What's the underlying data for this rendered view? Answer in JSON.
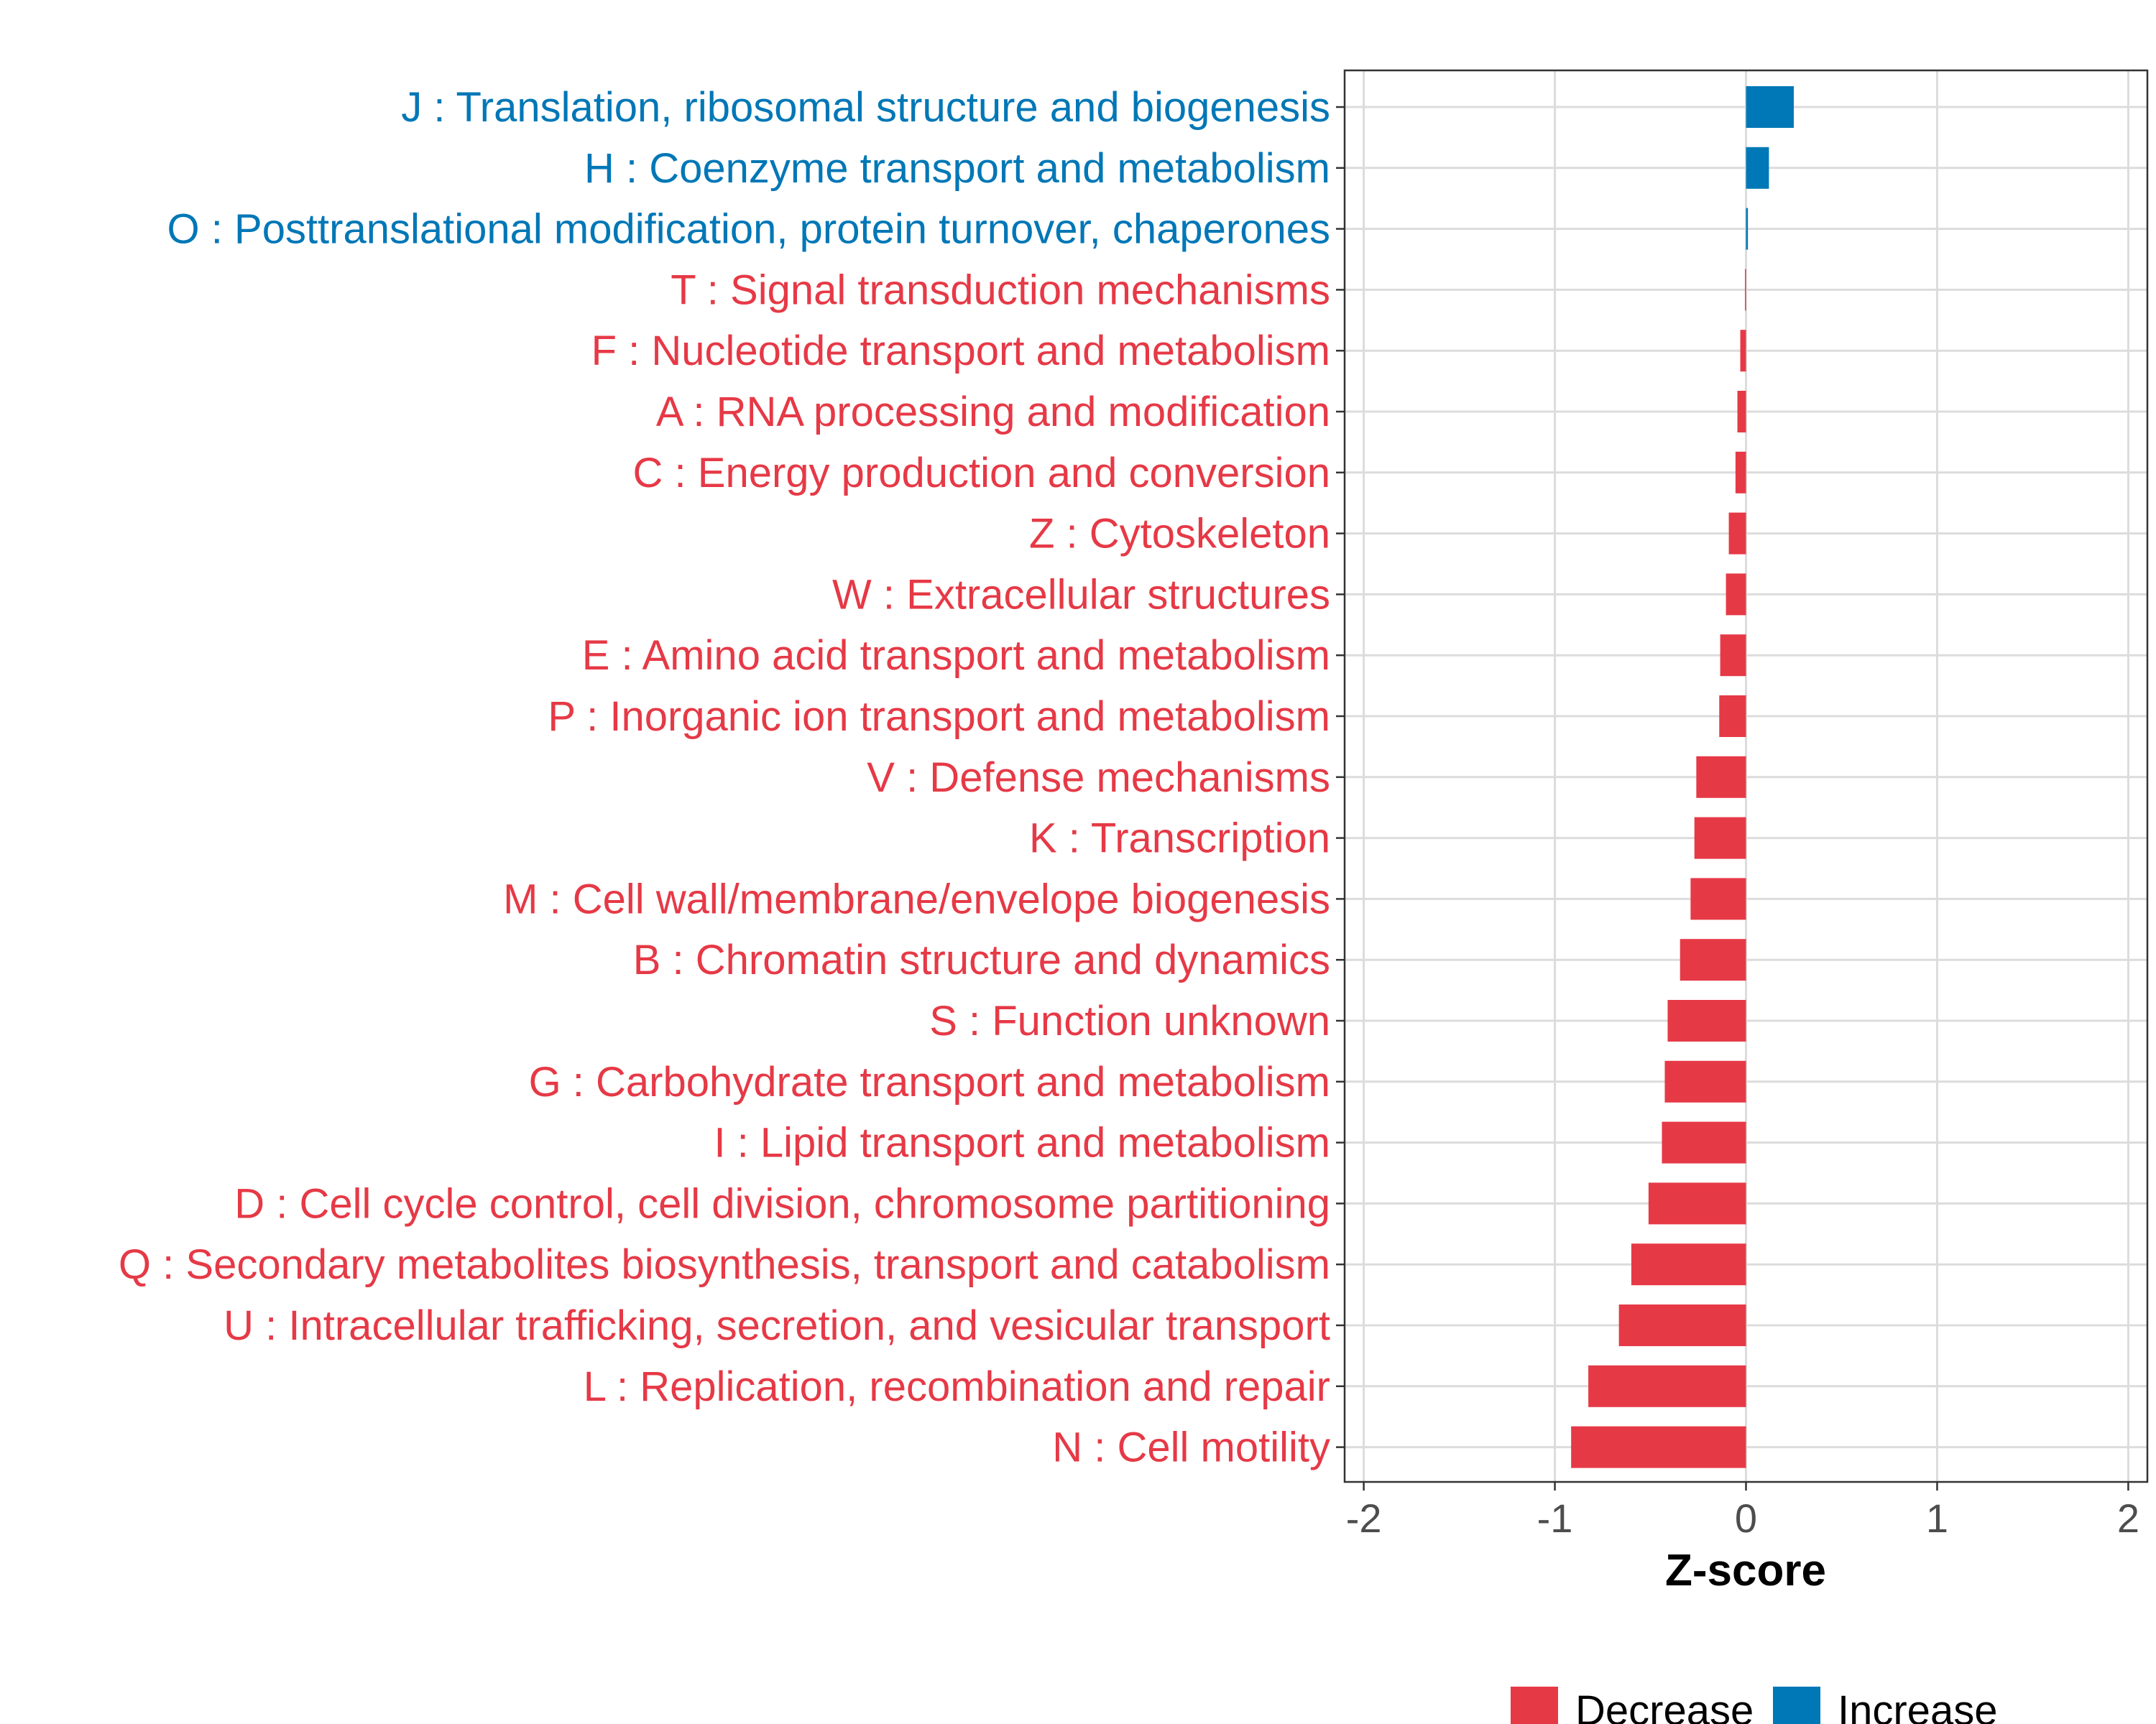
{
  "chart_data": {
    "type": "bar",
    "orientation": "horizontal",
    "xlabel": "Z-score",
    "xlim": [
      -2.1,
      2.1
    ],
    "xticks": [
      -2,
      -1,
      0,
      1,
      2
    ],
    "xtick_labels": [
      "-2",
      "-1",
      "0",
      "1",
      "2"
    ],
    "grid": true,
    "legend_position": "bottom",
    "colors": {
      "Decrease": "#E63946",
      "Increase": "#0077B6"
    },
    "legend": [
      {
        "label": "Decrease",
        "color": "#E63946"
      },
      {
        "label": "Increase",
        "color": "#0077B6"
      }
    ],
    "categories": [
      "J : Translation, ribosomal structure and biogenesis",
      "H : Coenzyme transport and metabolism",
      "O : Posttranslational modification, protein turnover, chaperones",
      "T : Signal transduction mechanisms",
      "F : Nucleotide transport and metabolism",
      "A : RNA processing and modification",
      "C : Energy production and conversion",
      "Z : Cytoskeleton",
      "W : Extracellular structures",
      "E : Amino acid transport and metabolism",
      "P : Inorganic ion transport and metabolism",
      "V : Defense mechanisms",
      "K : Transcription",
      "M : Cell wall/membrane/envelope biogenesis",
      "B : Chromatin structure and dynamics",
      "S : Function unknown",
      "G : Carbohydrate transport and metabolism",
      "I : Lipid transport and metabolism",
      "D : Cell cycle control, cell division, chromosome partitioning",
      "Q : Secondary metabolites biosynthesis, transport and catabolism",
      "U : Intracellular trafficking, secretion, and vesicular transport",
      "L : Replication, recombination and repair",
      "N : Cell motility"
    ],
    "values": [
      0.25,
      0.12,
      0.01,
      -0.005,
      -0.03,
      -0.045,
      -0.055,
      -0.09,
      -0.105,
      -0.135,
      -0.14,
      -0.26,
      -0.27,
      -0.29,
      -0.345,
      -0.41,
      -0.425,
      -0.44,
      -0.51,
      -0.6,
      -0.665,
      -0.825,
      -0.915
    ],
    "groups": [
      "Increase",
      "Increase",
      "Increase",
      "Decrease",
      "Decrease",
      "Decrease",
      "Decrease",
      "Decrease",
      "Decrease",
      "Decrease",
      "Decrease",
      "Decrease",
      "Decrease",
      "Decrease",
      "Decrease",
      "Decrease",
      "Decrease",
      "Decrease",
      "Decrease",
      "Decrease",
      "Decrease",
      "Decrease",
      "Decrease"
    ]
  }
}
